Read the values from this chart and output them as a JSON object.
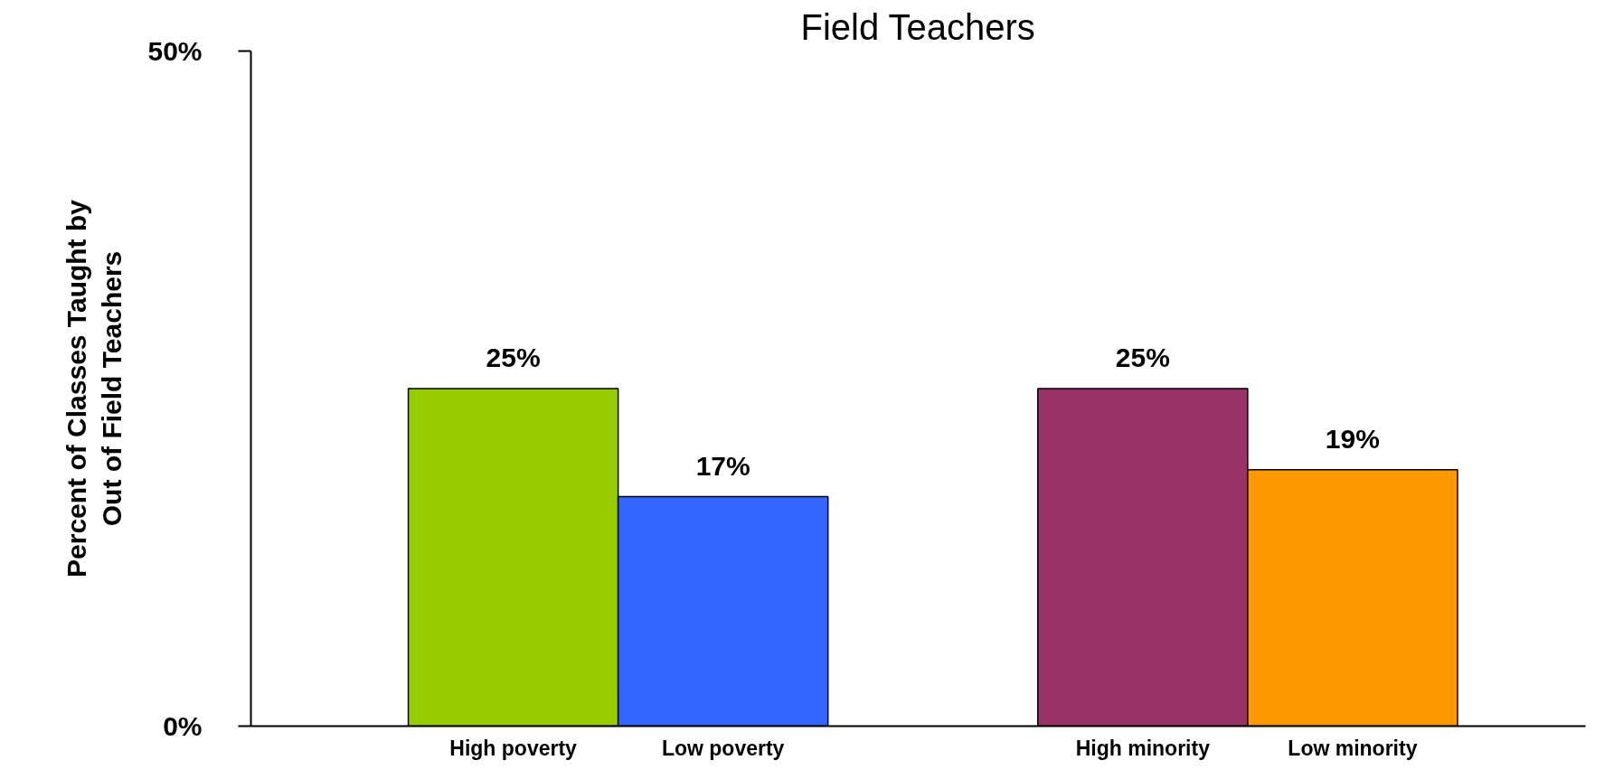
{
  "chart_data": {
    "type": "bar",
    "title": "Field Teachers",
    "ylabel": "Percent of Classes Taught by\nOut of Field Teachers",
    "categories": [
      "High poverty",
      "Low poverty",
      "High minority",
      "Low minority"
    ],
    "values": [
      25,
      17,
      25,
      19
    ],
    "colors": [
      "#99cc00",
      "#3366ff",
      "#993366",
      "#ff9900"
    ],
    "value_labels": [
      "25%",
      "17%",
      "25%",
      "19%"
    ],
    "ylim": [
      0,
      50
    ],
    "yticks": [
      {
        "value": 0,
        "label": "0%"
      },
      {
        "value": 50,
        "label": "50%"
      }
    ],
    "grid": false
  }
}
